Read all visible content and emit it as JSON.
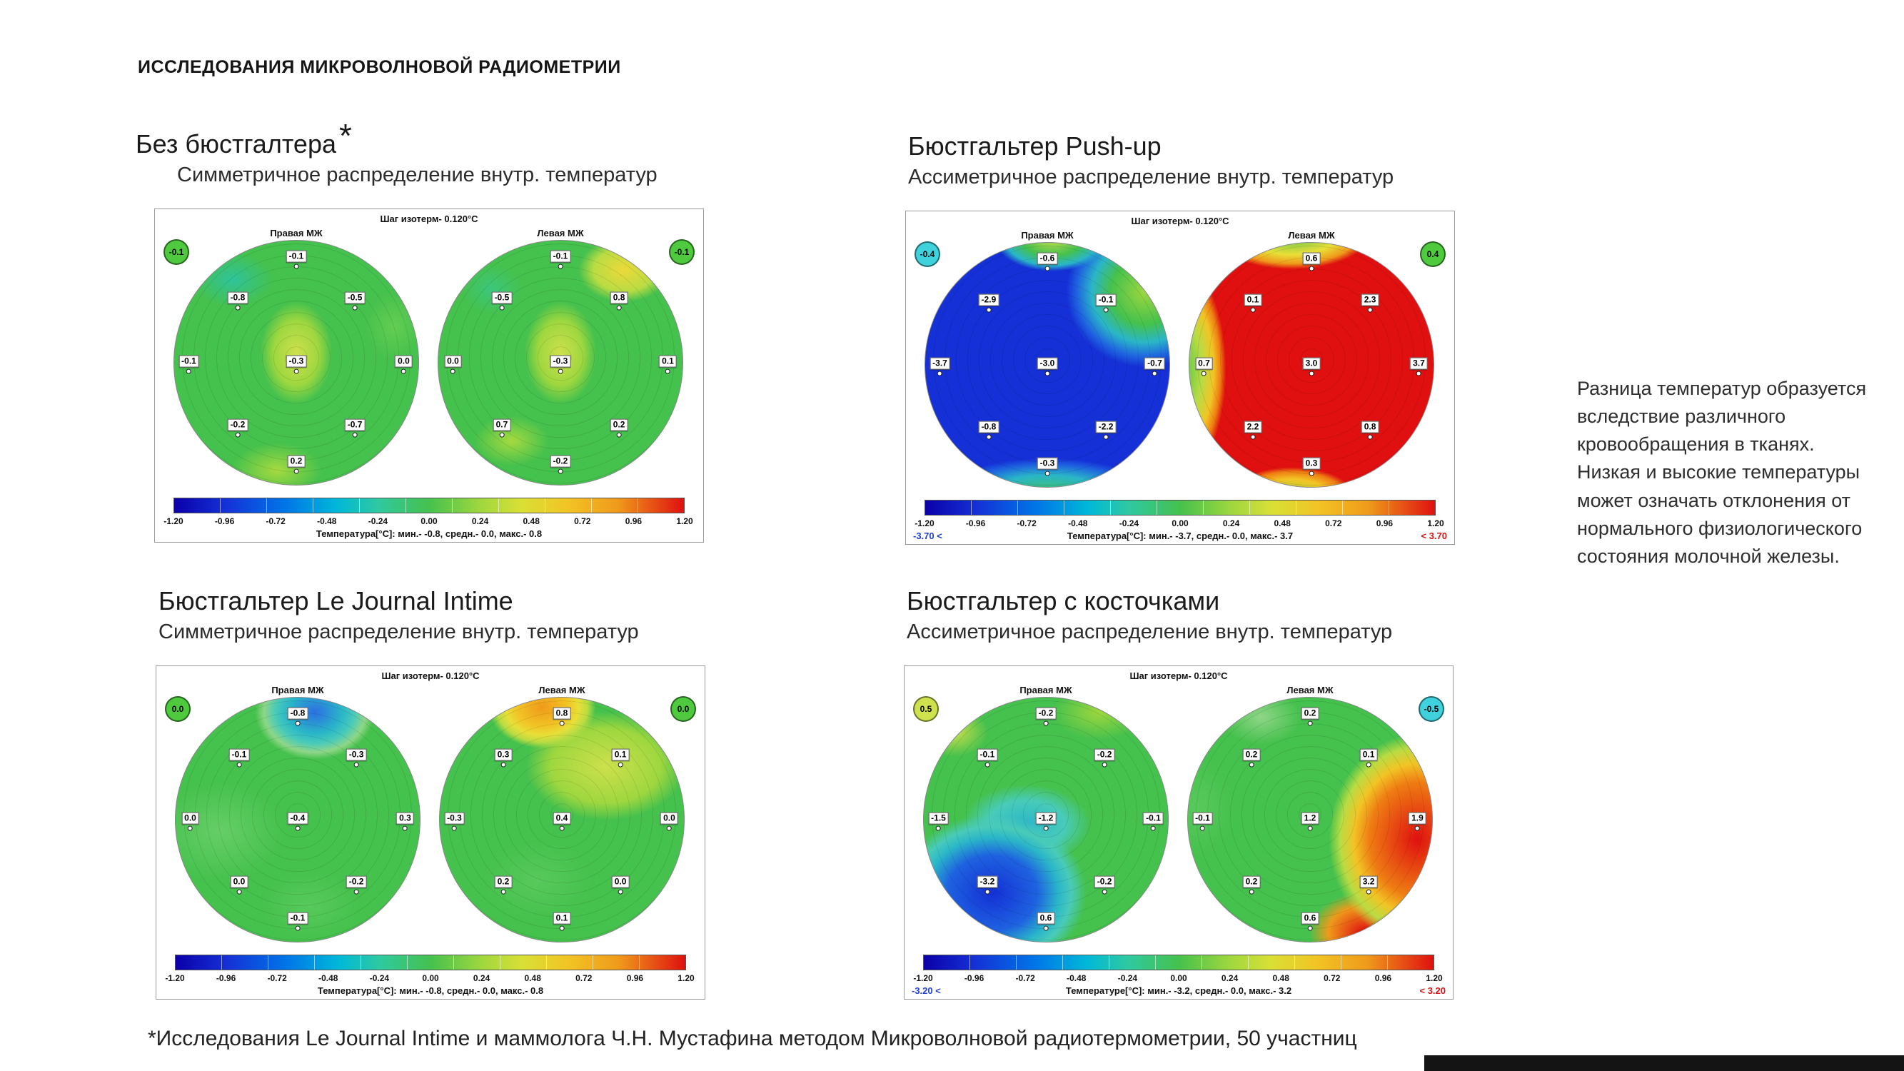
{
  "page": {
    "header": "ИССЛЕДОВАНИЯ МИКРОВОЛНОВОЙ РАДИОМЕТРИИ",
    "side_note": "Разница температур образуется вследствие различного кровообращения в тканях. Низкая и высокие температуры может означать отклонения от нормального физиологического состояния молочной железы.",
    "footnote": "*Исследования Le Journal Intime и маммолога Ч.Н. Мустафина методом Микроволновой радиотермометрии, 50 участниц"
  },
  "colors": {
    "flag_min_text": "#1f3fd8",
    "flag_max_text": "#e01010"
  },
  "chart_data": [
    {
      "type": "contour_heatmap",
      "title": "Без бюстгалтера",
      "title_superscript": "*",
      "subtitle": "Симметричное распределение внутр. температур",
      "isotherm_step_label": "Шаг изотерм- 0.120°C",
      "right_breast_label": "Правая МЖ",
      "left_breast_label": "Левая МЖ",
      "corner_badges": {
        "left": {
          "value": "-0.1",
          "color": "#4fc93e"
        },
        "right": {
          "value": "-0.1",
          "color": "#4fc93e"
        }
      },
      "right_breast_points": [
        {
          "pos": "top",
          "value": "-0.1"
        },
        {
          "pos": "upper-left",
          "value": "-0.8"
        },
        {
          "pos": "upper-right",
          "value": "-0.5"
        },
        {
          "pos": "left",
          "value": "-0.1"
        },
        {
          "pos": "center",
          "value": "-0.3"
        },
        {
          "pos": "right",
          "value": "0.0"
        },
        {
          "pos": "lower-left",
          "value": "-0.2"
        },
        {
          "pos": "lower-right",
          "value": "-0.7"
        },
        {
          "pos": "bottom",
          "value": "0.2"
        }
      ],
      "left_breast_points": [
        {
          "pos": "top",
          "value": "-0.1"
        },
        {
          "pos": "upper-left",
          "value": "-0.5"
        },
        {
          "pos": "upper-right",
          "value": "0.8"
        },
        {
          "pos": "left",
          "value": "0.0"
        },
        {
          "pos": "center",
          "value": "-0.3"
        },
        {
          "pos": "right",
          "value": "0.1"
        },
        {
          "pos": "lower-left",
          "value": "0.7"
        },
        {
          "pos": "lower-right",
          "value": "0.2"
        },
        {
          "pos": "bottom",
          "value": "-0.2"
        }
      ],
      "colorbar": {
        "min": -1.2,
        "max": 1.2,
        "ticks": [
          "-1.20",
          "-0.96",
          "-0.72",
          "-0.48",
          "-0.24",
          "0.00",
          "0.24",
          "0.48",
          "0.72",
          "0.96",
          "1.20"
        ]
      },
      "stats_line": "Температура[°C]: мин.- -0.8, средн.- 0.0, макс.- 0.8",
      "min_flag": "",
      "max_flag": ""
    },
    {
      "type": "contour_heatmap",
      "title": "Бюстгальтер Push-up",
      "title_superscript": "",
      "subtitle": "Ассиметричное распределение внутр. температур",
      "isotherm_step_label": "Шаг изотерм- 0.120°C",
      "right_breast_label": "Правая МЖ",
      "left_breast_label": "Левая МЖ",
      "corner_badges": {
        "left": {
          "value": "-0.4",
          "color": "#3fd2dc"
        },
        "right": {
          "value": "0.4",
          "color": "#4fc93e"
        }
      },
      "right_breast_points": [
        {
          "pos": "top",
          "value": "-0.6"
        },
        {
          "pos": "upper-left",
          "value": "-2.9"
        },
        {
          "pos": "upper-right",
          "value": "-0.1"
        },
        {
          "pos": "left",
          "value": "-3.7"
        },
        {
          "pos": "center",
          "value": "-3.0"
        },
        {
          "pos": "right",
          "value": "-0.7"
        },
        {
          "pos": "lower-left",
          "value": "-0.8"
        },
        {
          "pos": "lower-right",
          "value": "-2.2"
        },
        {
          "pos": "bottom",
          "value": "-0.3"
        }
      ],
      "left_breast_points": [
        {
          "pos": "top",
          "value": "0.6"
        },
        {
          "pos": "upper-left",
          "value": "0.1"
        },
        {
          "pos": "upper-right",
          "value": "2.3"
        },
        {
          "pos": "left",
          "value": "0.7"
        },
        {
          "pos": "center",
          "value": "3.0"
        },
        {
          "pos": "right",
          "value": "3.7"
        },
        {
          "pos": "lower-left",
          "value": "2.2"
        },
        {
          "pos": "lower-right",
          "value": "0.8"
        },
        {
          "pos": "bottom",
          "value": "0.3"
        }
      ],
      "colorbar": {
        "min": -1.2,
        "max": 1.2,
        "ticks": [
          "-1.20",
          "-0.96",
          "-0.72",
          "-0.48",
          "-0.24",
          "0.00",
          "0.24",
          "0.48",
          "0.72",
          "0.96",
          "1.20"
        ]
      },
      "stats_line": "Температура[°C]: мин.- -3.7, средн.- 0.0, макс.- 3.7",
      "min_flag": "-3.70 <",
      "max_flag": "< 3.70"
    },
    {
      "type": "contour_heatmap",
      "title": "Бюстгальтер Le Journal Intime",
      "title_superscript": "",
      "subtitle": "Симметричное распределение внутр. температур",
      "isotherm_step_label": "Шаг изотерм- 0.120°C",
      "right_breast_label": "Правая МЖ",
      "left_breast_label": "Левая МЖ",
      "corner_badges": {
        "left": {
          "value": "0.0",
          "color": "#4fc93e"
        },
        "right": {
          "value": "0.0",
          "color": "#4fc93e"
        }
      },
      "right_breast_points": [
        {
          "pos": "top",
          "value": "-0.8"
        },
        {
          "pos": "upper-left",
          "value": "-0.1"
        },
        {
          "pos": "upper-right",
          "value": "-0.3"
        },
        {
          "pos": "left",
          "value": "0.0"
        },
        {
          "pos": "center",
          "value": "-0.4"
        },
        {
          "pos": "right",
          "value": "0.3"
        },
        {
          "pos": "lower-left",
          "value": "0.0"
        },
        {
          "pos": "lower-right",
          "value": "-0.2"
        },
        {
          "pos": "bottom",
          "value": "-0.1"
        }
      ],
      "left_breast_points": [
        {
          "pos": "top",
          "value": "0.8"
        },
        {
          "pos": "upper-left",
          "value": "0.3"
        },
        {
          "pos": "upper-right",
          "value": "0.1"
        },
        {
          "pos": "left",
          "value": "-0.3"
        },
        {
          "pos": "center",
          "value": "0.4"
        },
        {
          "pos": "right",
          "value": "0.0"
        },
        {
          "pos": "lower-left",
          "value": "0.2"
        },
        {
          "pos": "lower-right",
          "value": "0.0"
        },
        {
          "pos": "bottom",
          "value": "0.1"
        }
      ],
      "colorbar": {
        "min": -1.2,
        "max": 1.2,
        "ticks": [
          "-1.20",
          "-0.96",
          "-0.72",
          "-0.48",
          "-0.24",
          "0.00",
          "0.24",
          "0.48",
          "0.72",
          "0.96",
          "1.20"
        ]
      },
      "stats_line": "Температура[°C]: мин.- -0.8, средн.- 0.0, макс.- 0.8",
      "min_flag": "",
      "max_flag": ""
    },
    {
      "type": "contour_heatmap",
      "title": "Бюстгальтер с косточками",
      "title_superscript": "",
      "subtitle": "Ассиметричное распределение внутр. температур",
      "isotherm_step_label": "Шаг изотерм- 0.120°C",
      "right_breast_label": "Правая МЖ",
      "left_breast_label": "Левая МЖ",
      "corner_badges": {
        "left": {
          "value": "0.5",
          "color": "#cfe24e"
        },
        "right": {
          "value": "-0.5",
          "color": "#3fd2dc"
        }
      },
      "right_breast_points": [
        {
          "pos": "top",
          "value": "-0.2"
        },
        {
          "pos": "upper-left",
          "value": "-0.1"
        },
        {
          "pos": "upper-right",
          "value": "-0.2"
        },
        {
          "pos": "left",
          "value": "-1.5"
        },
        {
          "pos": "center",
          "value": "-1.2"
        },
        {
          "pos": "right",
          "value": "-0.1"
        },
        {
          "pos": "lower-left",
          "value": "-3.2"
        },
        {
          "pos": "lower-right",
          "value": "-0.2"
        },
        {
          "pos": "bottom",
          "value": "0.6"
        }
      ],
      "left_breast_points": [
        {
          "pos": "top",
          "value": "0.2"
        },
        {
          "pos": "upper-left",
          "value": "0.2"
        },
        {
          "pos": "upper-right",
          "value": "0.1"
        },
        {
          "pos": "left",
          "value": "-0.1"
        },
        {
          "pos": "center",
          "value": "1.2"
        },
        {
          "pos": "right",
          "value": "1.9"
        },
        {
          "pos": "lower-left",
          "value": "0.2"
        },
        {
          "pos": "lower-right",
          "value": "3.2"
        },
        {
          "pos": "bottom",
          "value": "0.6"
        }
      ],
      "colorbar": {
        "min": -1.2,
        "max": 1.2,
        "ticks": [
          "-1.20",
          "-0.96",
          "-0.72",
          "-0.48",
          "-0.24",
          "0.00",
          "0.24",
          "0.48",
          "0.72",
          "0.96",
          "1.20"
        ]
      },
      "stats_line": "Температуре[°C]: мин.- -3.2, средн.- 0.0, макс.- 3.2",
      "min_flag": "-3.20 <",
      "max_flag": "< 3.20"
    }
  ]
}
